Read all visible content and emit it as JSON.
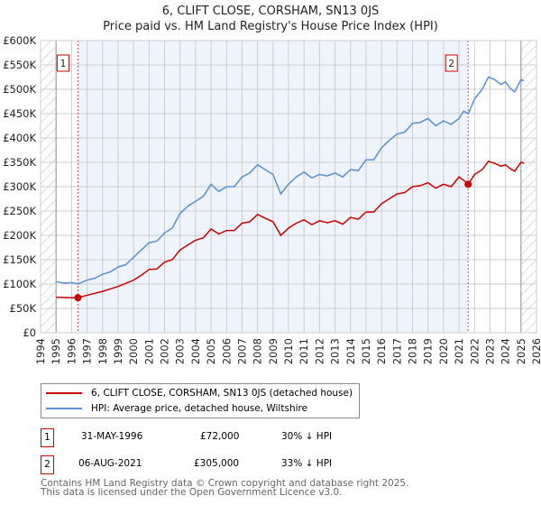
{
  "chart_data": {
    "type": "line",
    "title": "6, CLIFT CLOSE, CORSHAM, SN13 0JS",
    "subtitle": "Price paid vs. HM Land Registry's House Price Index (HPI)",
    "xlim": [
      1994,
      2026
    ],
    "ylim": [
      0,
      600000
    ],
    "x_ticks": [
      "1994",
      "1995",
      "1996",
      "1997",
      "1998",
      "1999",
      "2000",
      "2001",
      "2002",
      "2003",
      "2004",
      "2005",
      "2006",
      "2007",
      "2008",
      "2009",
      "2010",
      "2011",
      "2012",
      "2013",
      "2014",
      "2015",
      "2016",
      "2017",
      "2018",
      "2019",
      "2020",
      "2021",
      "2022",
      "2023",
      "2024",
      "2025",
      "2026"
    ],
    "y_ticks": [
      "£0",
      "£50K",
      "£100K",
      "£150K",
      "£200K",
      "£250K",
      "£300K",
      "£350K",
      "£400K",
      "£450K",
      "£500K",
      "£550K",
      "£600K"
    ],
    "grid": true,
    "series": [
      {
        "name": "6, CLIFT CLOSE, CORSHAM, SN13 0JS (detached house)",
        "color": "#cc0000",
        "x": [
          1995,
          1996,
          1996.4,
          1997,
          1998,
          1999,
          2000,
          2000.5,
          2001,
          2001.5,
          2002,
          2002.5,
          2003,
          2003.5,
          2004,
          2004.5,
          2005,
          2005.5,
          2006,
          2006.5,
          2007,
          2007.5,
          2008,
          2008.5,
          2009,
          2009.5,
          2010,
          2010.5,
          2011,
          2011.5,
          2012,
          2012.5,
          2013,
          2013.5,
          2014,
          2014.5,
          2015,
          2015.5,
          2016,
          2016.5,
          2017,
          2017.5,
          2018,
          2018.5,
          2019,
          2019.5,
          2020,
          2020.5,
          2021,
          2021.3,
          2021.6,
          2022,
          2022.5,
          2022.9,
          2023.3,
          2023.7,
          2024,
          2024.3,
          2024.6,
          2025,
          2025.2
        ],
        "values": [
          73,
          72,
          72,
          77,
          85,
          95,
          108,
          118,
          130,
          131,
          145,
          150,
          170,
          180,
          190,
          195,
          213,
          203,
          210,
          210,
          225,
          228,
          243,
          235,
          228,
          200,
          215,
          225,
          232,
          222,
          230,
          226,
          230,
          223,
          237,
          233,
          248,
          248,
          265,
          275,
          285,
          288,
          300,
          302,
          308,
          297,
          305,
          300,
          320,
          313,
          305,
          325,
          335,
          352,
          348,
          342,
          345,
          337,
          332,
          350,
          348
        ]
      },
      {
        "name": "HPI: Average price, detached house, Wiltshire",
        "color": "#5b8fd4",
        "x": [
          1995,
          1995.5,
          1996,
          1996.4,
          1997,
          1997.5,
          1998,
          1998.5,
          1999,
          1999.5,
          2000,
          2000.5,
          2001,
          2001.5,
          2002,
          2002.5,
          2003,
          2003.5,
          2004,
          2004.5,
          2005,
          2005.5,
          2006,
          2006.5,
          2007,
          2007.5,
          2008,
          2008.5,
          2009,
          2009.5,
          2010,
          2010.5,
          2011,
          2011.5,
          2012,
          2012.5,
          2013,
          2013.5,
          2014,
          2014.5,
          2015,
          2015.5,
          2016,
          2016.5,
          2017,
          2017.5,
          2018,
          2018.5,
          2019,
          2019.5,
          2020,
          2020.5,
          2021,
          2021.3,
          2021.6,
          2022,
          2022.5,
          2022.9,
          2023.3,
          2023.7,
          2024,
          2024.3,
          2024.6,
          2025,
          2025.2
        ],
        "values": [
          105,
          102,
          103,
          100,
          108,
          112,
          120,
          125,
          135,
          140,
          155,
          170,
          185,
          188,
          205,
          215,
          245,
          260,
          270,
          280,
          305,
          290,
          300,
          300,
          320,
          328,
          345,
          335,
          325,
          285,
          305,
          320,
          330,
          318,
          325,
          322,
          328,
          320,
          335,
          333,
          355,
          355,
          380,
          395,
          408,
          412,
          430,
          432,
          440,
          425,
          435,
          428,
          440,
          455,
          450,
          480,
          500,
          525,
          520,
          510,
          515,
          502,
          495,
          520,
          517
        ]
      }
    ],
    "sales": [
      {
        "label": "1",
        "x": 1996.41,
        "value": 72
      },
      {
        "label": "2",
        "x": 2021.59,
        "value": 305
      }
    ]
  },
  "transactions": [
    {
      "num": "1",
      "date": "31-MAY-1996",
      "price": "£72,000",
      "hpi": "30% ↓ HPI"
    },
    {
      "num": "2",
      "date": "06-AUG-2021",
      "price": "£305,000",
      "hpi": "33% ↓ HPI"
    }
  ],
  "footer": [
    "Contains HM Land Registry data © Crown copyright and database right 2025.",
    "This data is licensed under the Open Government Licence v3.0."
  ]
}
